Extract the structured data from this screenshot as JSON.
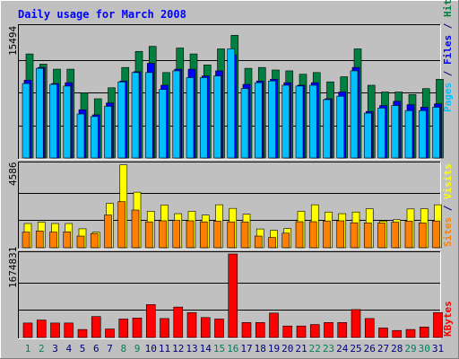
{
  "chart_data": [
    {
      "type": "bar",
      "title": "Daily usage for March 2008",
      "panel": "hits-files-pages",
      "categories": [
        "1",
        "2",
        "3",
        "4",
        "5",
        "6",
        "7",
        "8",
        "9",
        "10",
        "11",
        "12",
        "13",
        "14",
        "15",
        "16",
        "17",
        "18",
        "19",
        "20",
        "21",
        "22",
        "23",
        "24",
        "25",
        "26",
        "27",
        "28",
        "29",
        "30",
        "31"
      ],
      "ymax_label": "15494",
      "ylim": [
        0,
        15494
      ],
      "series": [
        {
          "name": "Hits",
          "color": "#008040",
          "values": [
            12300,
            11100,
            10500,
            10500,
            7700,
            7000,
            8300,
            10700,
            12600,
            13200,
            10100,
            13000,
            12300,
            11000,
            12900,
            14500,
            10600,
            10700,
            10400,
            10300,
            9900,
            10100,
            9000,
            9600,
            12900,
            8600,
            7800,
            7800,
            7500,
            8200,
            9300
          ]
        },
        {
          "name": "Files",
          "color": "#0000ff",
          "values": [
            9200,
            10700,
            8800,
            8900,
            5700,
            5100,
            6500,
            9100,
            10200,
            11200,
            8600,
            10500,
            10500,
            9700,
            10300,
            12200,
            8700,
            9100,
            9300,
            8900,
            8600,
            8900,
            7000,
            7800,
            10700,
            5500,
            6200,
            6700,
            6300,
            6000,
            6400
          ]
        },
        {
          "name": "Pages",
          "color": "#00c0ff",
          "values": [
            8800,
            10600,
            8700,
            8500,
            5200,
            4900,
            6100,
            9000,
            10100,
            10100,
            8100,
            10300,
            9500,
            9500,
            9700,
            12900,
            8200,
            8900,
            9100,
            8600,
            8500,
            8600,
            6900,
            7300,
            10300,
            5300,
            5900,
            6200,
            5600,
            5600,
            6000
          ]
        }
      ],
      "right_label_parts": [
        {
          "text": "Pages",
          "color": "#00c0ff"
        },
        {
          "text": " / ",
          "color": "#000080"
        },
        {
          "text": "Files",
          "color": "#0000ff"
        },
        {
          "text": " / ",
          "color": "#000080"
        },
        {
          "text": "Hits",
          "color": "#008040"
        }
      ]
    },
    {
      "type": "bar",
      "panel": "visits-sites",
      "categories": [
        "1",
        "2",
        "3",
        "4",
        "5",
        "6",
        "7",
        "8",
        "9",
        "10",
        "11",
        "12",
        "13",
        "14",
        "15",
        "16",
        "17",
        "18",
        "19",
        "20",
        "21",
        "22",
        "23",
        "24",
        "25",
        "26",
        "27",
        "28",
        "29",
        "30",
        "31"
      ],
      "ymax_label": "4586",
      "ylim": [
        0,
        4586
      ],
      "series": [
        {
          "name": "Visits",
          "color": "#ffff00",
          "values": [
            1330,
            1410,
            1330,
            1330,
            1040,
            850,
            2440,
            4550,
            3050,
            2000,
            2350,
            1870,
            2000,
            1790,
            2360,
            2160,
            1840,
            1030,
            950,
            1050,
            2000,
            2360,
            1960,
            1870,
            1960,
            2140,
            1460,
            1540,
            2130,
            2140,
            2360
          ]
        },
        {
          "name": "Sites",
          "color": "#ff8000",
          "values": [
            860,
            920,
            860,
            870,
            640,
            780,
            1800,
            2530,
            2070,
            1420,
            1480,
            1500,
            1480,
            1420,
            1460,
            1420,
            1420,
            640,
            560,
            800,
            1430,
            1430,
            1470,
            1480,
            1370,
            1360,
            1360,
            1400,
            1460,
            1360,
            1470
          ]
        }
      ],
      "right_label_parts": [
        {
          "text": "Sites",
          "color": "#ff8000"
        },
        {
          "text": " / ",
          "color": "#000080"
        },
        {
          "text": "Visits",
          "color": "#ffff00"
        }
      ]
    },
    {
      "type": "bar",
      "panel": "kbytes",
      "categories": [
        "1",
        "2",
        "3",
        "4",
        "5",
        "6",
        "7",
        "8",
        "9",
        "10",
        "11",
        "12",
        "13",
        "14",
        "15",
        "16",
        "17",
        "18",
        "19",
        "20",
        "21",
        "22",
        "23",
        "24",
        "25",
        "26",
        "27",
        "28",
        "29",
        "30",
        "31"
      ],
      "ymax_label": "1674831",
      "ylim": [
        0,
        1674831
      ],
      "series": [
        {
          "name": "KBytes",
          "color": "#ff0000",
          "values": [
            290000,
            350000,
            290000,
            290000,
            160000,
            420000,
            170000,
            370000,
            390000,
            660000,
            380000,
            610000,
            500000,
            400000,
            370000,
            1674831,
            300000,
            300000,
            490000,
            230000,
            230000,
            260000,
            300000,
            300000,
            560000,
            380000,
            190000,
            140000,
            160000,
            210000,
            500000
          ]
        }
      ],
      "right_label_parts": [
        {
          "text": "KBytes",
          "color": "#ff0000"
        }
      ]
    }
  ],
  "weekend_days": [
    "1",
    "2",
    "8",
    "9",
    "15",
    "16",
    "22",
    "23",
    "29",
    "30"
  ],
  "day_colors": {
    "weekday": "#000080",
    "weekend": "#00805c"
  },
  "colors": {
    "background": "#c0c0c0",
    "plot": "#c0c0c0",
    "title": "#0000ff"
  }
}
